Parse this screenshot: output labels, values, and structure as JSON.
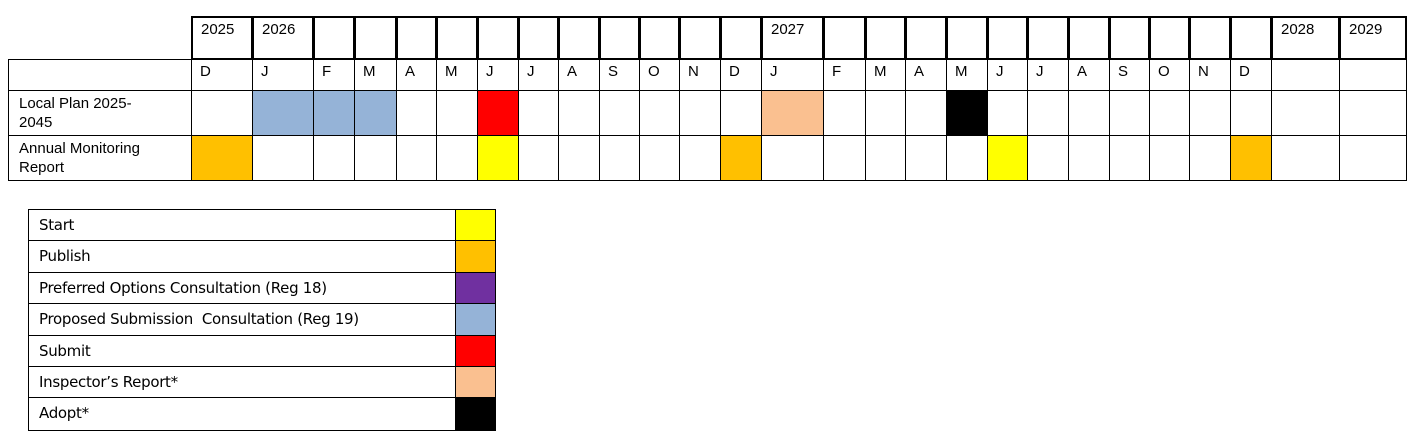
{
  "legend": [
    {
      "key": "start",
      "label": "Start",
      "color": "#ffff00"
    },
    {
      "key": "publish",
      "label": "Publish",
      "color": "#ffc000"
    },
    {
      "key": "preferred_options",
      "label": "Preferred Options Consultation (Reg 18)",
      "color": "#7030a0"
    },
    {
      "key": "proposed_submission",
      "label": "Proposed Submission  Consultation (Reg 19)",
      "color": "#95b3d7"
    },
    {
      "key": "submit",
      "label": "Submit",
      "color": "#ff0000"
    },
    {
      "key": "inspectors_report",
      "label": "Inspector’s Report*",
      "color": "#fac090"
    },
    {
      "key": "adopt",
      "label": "Adopt*",
      "color": "#000000"
    }
  ],
  "timeline": {
    "years": [
      {
        "label": "2025",
        "column": 0
      },
      {
        "label": "2026",
        "column": 1
      },
      {
        "label": "2027",
        "column": 13
      },
      {
        "label": "2028",
        "column": 25
      },
      {
        "label": "2029",
        "column": 26
      }
    ],
    "months": [
      "D",
      "J",
      "F",
      "M",
      "A",
      "M",
      "J",
      "J",
      "A",
      "S",
      "O",
      "N",
      "D",
      "J",
      "F",
      "M",
      "A",
      "M",
      "J",
      "J",
      "A",
      "S",
      "O",
      "N",
      "D",
      "",
      ""
    ],
    "rows": [
      {
        "label": "Local Plan 2025-\n2045",
        "cells": {
          "1": "proposed_submission",
          "2": "proposed_submission",
          "3": "proposed_submission",
          "6": "submit",
          "13": "inspectors_report",
          "17": "adopt"
        }
      },
      {
        "label": "Annual Monitoring\nReport",
        "cells": {
          "0": "publish",
          "6": "start",
          "12": "publish",
          "18": "start",
          "24": "publish"
        }
      }
    ]
  }
}
